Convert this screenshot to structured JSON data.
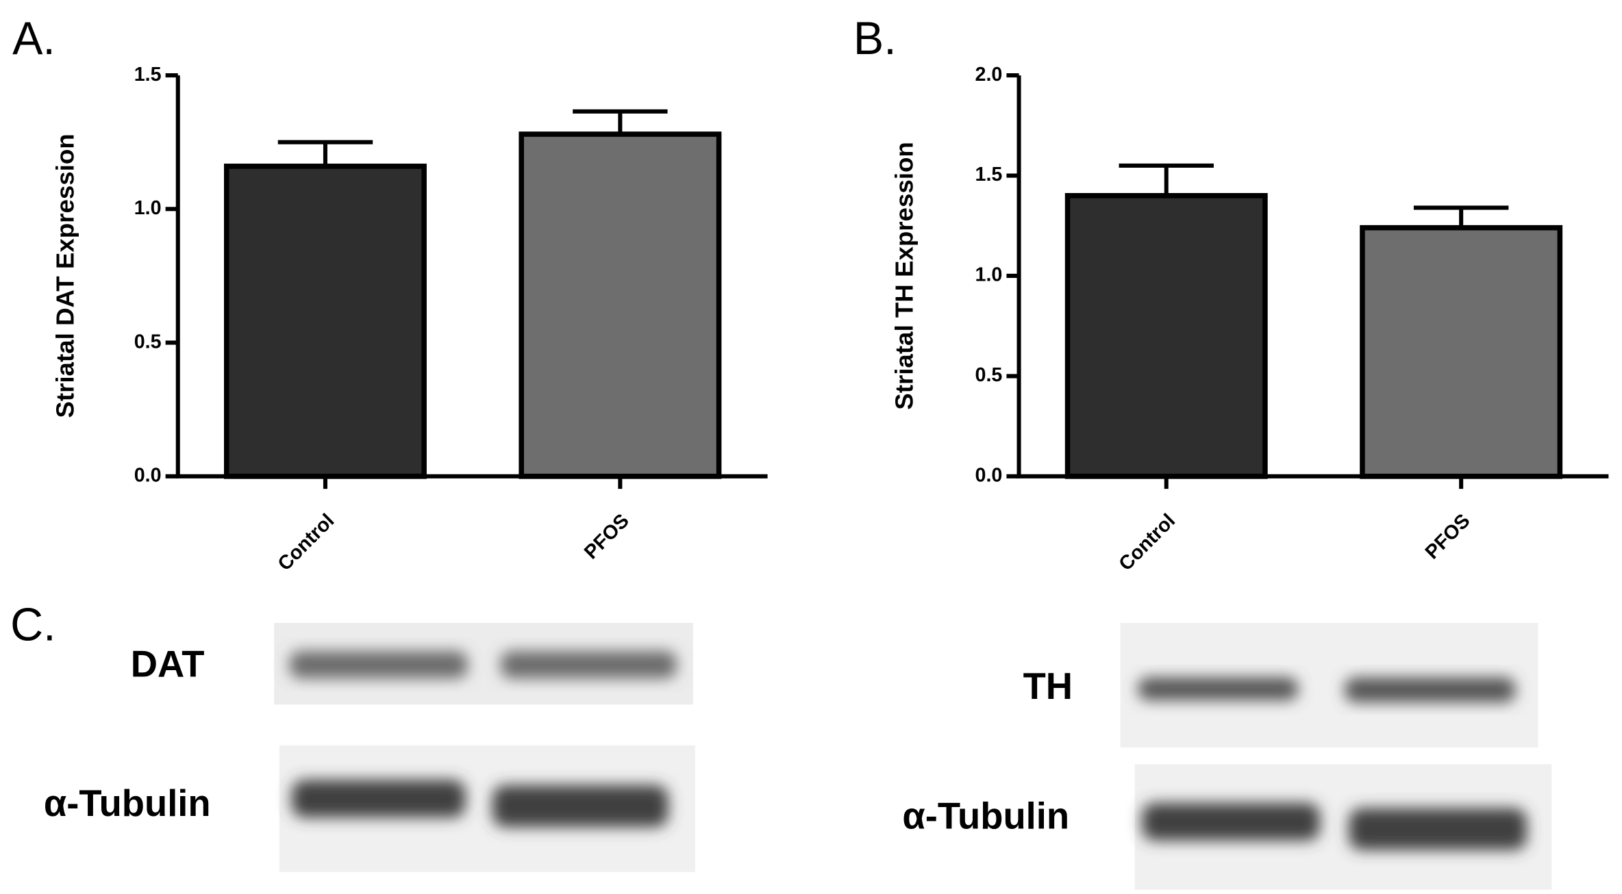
{
  "chart_data": [
    {
      "type": "bar",
      "panel": "A.",
      "ylabel": "Striatal DAT Expression",
      "categories": [
        "Control",
        "PFOS"
      ],
      "values": [
        1.16,
        1.28
      ],
      "errors": [
        0.09,
        0.085
      ],
      "colors": [
        "#2e2e2e",
        "#6e6e6e"
      ],
      "ylim": [
        0,
        1.5
      ],
      "yticks": [
        {
          "value": 0,
          "label": "0.0"
        },
        0.5,
        {
          "value": 1,
          "label": "1.0"
        },
        1.5
      ]
    },
    {
      "type": "bar",
      "panel": "B.",
      "ylabel": "Striatal TH Expression",
      "categories": [
        "Control",
        "PFOS"
      ],
      "values": [
        1.4,
        1.24
      ],
      "errors": [
        0.15,
        0.1
      ],
      "colors": [
        "#2e2e2e",
        "#6e6e6e"
      ],
      "ylim": [
        0,
        2
      ],
      "yticks": [
        {
          "value": 0,
          "label": "0.0"
        },
        0.5,
        {
          "value": 1,
          "label": "1.0"
        },
        1.5,
        {
          "value": 2,
          "label": "2.0"
        }
      ]
    }
  ],
  "blots": {
    "panel": "C.",
    "labels": [
      "DAT",
      "α-Tubulin",
      "TH",
      "α-Tubulin"
    ]
  }
}
